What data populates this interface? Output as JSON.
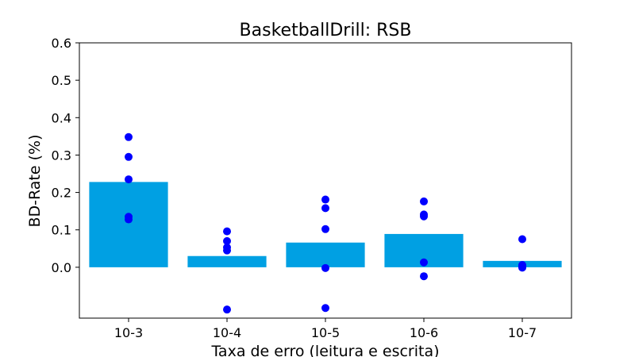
{
  "chart_data": {
    "type": "bar",
    "title": "BasketballDrill: RSB",
    "xlabel": "Taxa de erro (leitura e escrita)",
    "ylabel": "BD-Rate (%)",
    "categories": [
      "10-3",
      "10-4",
      "10-5",
      "10-6",
      "10-7"
    ],
    "values": [
      0.228,
      0.03,
      0.066,
      0.089,
      0.017
    ],
    "points": [
      [
        0.348,
        0.295,
        0.235,
        0.135,
        0.128
      ],
      [
        0.096,
        0.07,
        0.053,
        0.045,
        -0.113
      ],
      [
        0.181,
        0.158,
        0.102,
        -0.002,
        -0.109
      ],
      [
        0.176,
        0.141,
        0.136,
        0.013,
        -0.024
      ],
      [
        0.075,
        0.006,
        0.003,
        0.001,
        -0.001
      ]
    ],
    "ylim": [
      -0.136,
      0.6
    ],
    "yticks": [
      0.0,
      0.1,
      0.2,
      0.3,
      0.4,
      0.5,
      0.6
    ],
    "ytick_labels": [
      "0.0",
      "0.1",
      "0.2",
      "0.3",
      "0.4",
      "0.5",
      "0.6"
    ],
    "grid": false,
    "bar_color": "#00a0e3",
    "point_color": "#0000ff"
  }
}
